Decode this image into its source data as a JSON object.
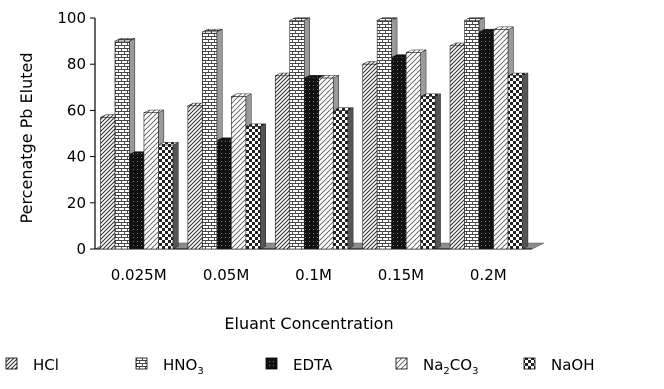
{
  "chart_data": {
    "type": "bar",
    "title": "",
    "xlabel": "Eluant Concentration",
    "ylabel": "Percenatge Pb Eluted",
    "ylim": [
      0,
      100
    ],
    "yticks": [
      "0",
      "20",
      "40",
      "60",
      "80",
      "100"
    ],
    "grid": false,
    "legend_position": "bottom",
    "three_d": true,
    "categories": [
      "0.025M",
      "0.05M",
      "0.1M",
      "0.15M",
      "0.2M"
    ],
    "series": [
      {
        "name": "HCl",
        "name_main": "HCl",
        "name_sub": "",
        "name_tail": "",
        "pattern": "diagonal",
        "values": [
          57,
          62,
          75,
          80,
          88
        ]
      },
      {
        "name": "HNO3",
        "name_main": "HNO",
        "name_sub": "3",
        "name_tail": "",
        "pattern": "brick",
        "values": [
          90,
          94,
          99,
          99,
          99
        ]
      },
      {
        "name": "EDTA",
        "name_main": "EDTA",
        "name_sub": "",
        "name_tail": "",
        "pattern": "dark",
        "values": [
          41,
          47,
          74,
          83,
          94
        ]
      },
      {
        "name": "Na2CO3",
        "name_main": "Na",
        "name_sub": "2",
        "name_tail": "CO3",
        "pattern": "hatch",
        "values": [
          59,
          66,
          74,
          85,
          95
        ]
      },
      {
        "name": "NaOH",
        "name_main": "NaOH",
        "name_sub": "",
        "name_tail": "",
        "pattern": "checker",
        "values": [
          45,
          53,
          60,
          66,
          75
        ]
      }
    ]
  }
}
